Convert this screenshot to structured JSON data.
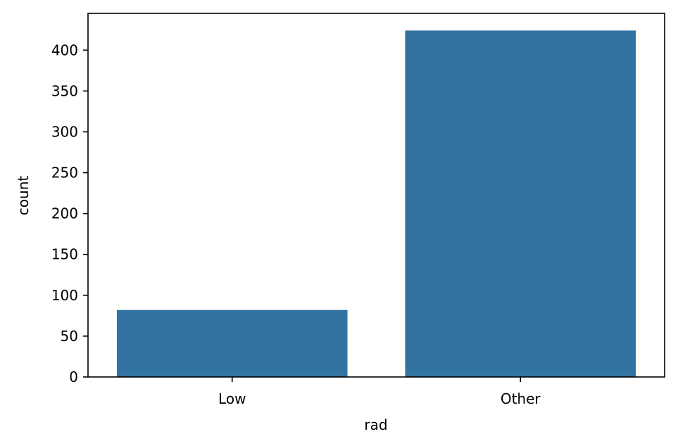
{
  "chart_data": {
    "type": "bar",
    "categories": [
      "Low",
      "Other"
    ],
    "values": [
      82,
      424
    ],
    "xlabel": "rad",
    "ylabel": "count",
    "ylim": [
      0,
      445
    ],
    "yticks": [
      0,
      50,
      100,
      150,
      200,
      250,
      300,
      350,
      400
    ],
    "grid": false,
    "legend": "none",
    "bar_color": "#3274a1"
  }
}
